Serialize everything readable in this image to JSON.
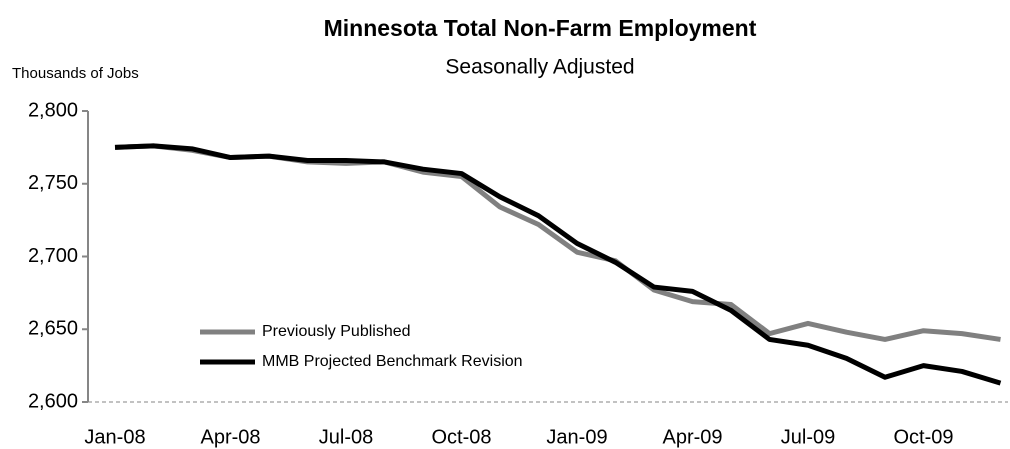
{
  "chart_data": {
    "type": "line",
    "title": "Minnesota Total Non-Farm Employment",
    "subtitle": "Seasonally Adjusted",
    "y_label": "Thousands of Jobs",
    "categories": [
      "Jan-08",
      null,
      null,
      "Apr-08",
      null,
      null,
      "Jul-08",
      null,
      null,
      "Oct-08",
      null,
      null,
      "Jan-09",
      null,
      null,
      "Apr-09",
      null,
      null,
      "Jul-09",
      null,
      null,
      "Oct-09",
      null,
      null
    ],
    "series": [
      {
        "name": "Previously Published",
        "color": "#808080",
        "values": [
          2775,
          2776,
          2773,
          2768,
          2769,
          2765,
          2764,
          2765,
          2758,
          2755,
          2734,
          2722,
          2703,
          2697,
          2677,
          2669,
          2667,
          2647,
          2654,
          2648,
          2643,
          2649,
          2647,
          2643
        ]
      },
      {
        "name": "MMB Projected Benchmark Revision",
        "color": "#000000",
        "values": [
          2775,
          2776,
          2774,
          2768,
          2769,
          2766,
          2766,
          2765,
          2760,
          2757,
          2741,
          2728,
          2709,
          2696,
          2679,
          2676,
          2663,
          2643,
          2639,
          2630,
          2617,
          2625,
          2621,
          2613
        ]
      }
    ],
    "ylim": [
      2600,
      2800
    ],
    "yticks": [
      {
        "value": 2600,
        "label": "2,600"
      },
      {
        "value": 2650,
        "label": "2,650"
      },
      {
        "value": 2700,
        "label": "2,700"
      },
      {
        "value": 2750,
        "label": "2,750"
      },
      {
        "value": 2800,
        "label": "2,800"
      }
    ],
    "legend": "lower-left",
    "grid": false
  }
}
